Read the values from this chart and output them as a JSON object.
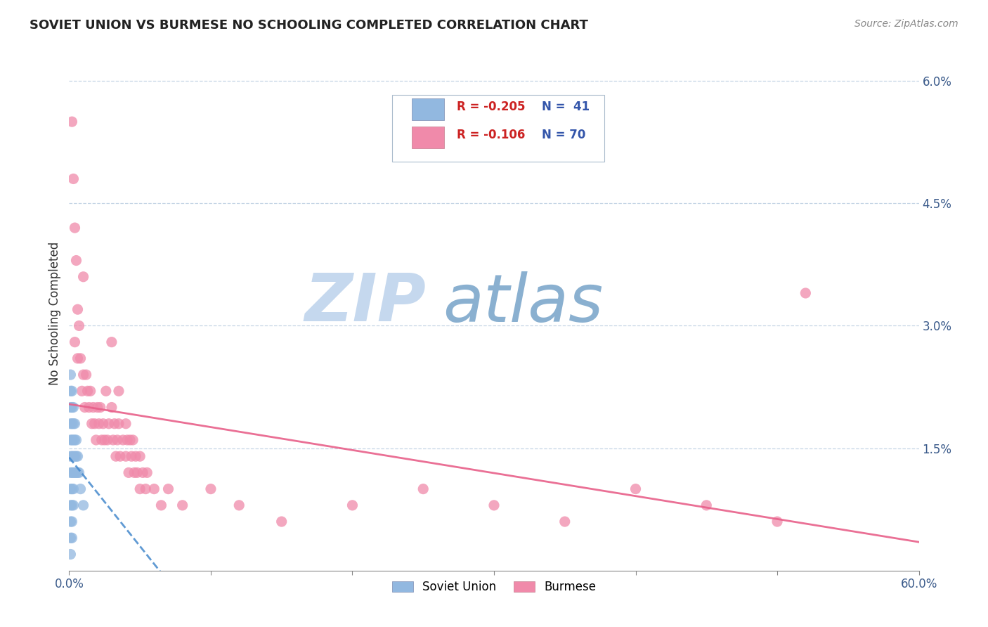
{
  "title": "SOVIET UNION VS BURMESE NO SCHOOLING COMPLETED CORRELATION CHART",
  "source": "Source: ZipAtlas.com",
  "ylabel": "No Schooling Completed",
  "soviet_color": "#92b8e0",
  "burmese_color": "#f08aaa",
  "soviet_trend_color": "#4488cc",
  "burmese_trend_color": "#e8608a",
  "background_color": "#ffffff",
  "watermark_zip": "ZIP",
  "watermark_atlas": "atlas",
  "watermark_color_zip": "#c5d8ee",
  "watermark_color_atlas": "#8ab0d0",
  "xmin": 0.0,
  "xmax": 0.6,
  "ymin": 0.0,
  "ymax": 0.063,
  "yticks": [
    0.0,
    0.015,
    0.03,
    0.045,
    0.06
  ],
  "yticklabels": [
    "",
    "1.5%",
    "3.0%",
    "4.5%",
    "6.0%"
  ],
  "legend_soviet_r": "R = -0.205",
  "legend_soviet_n": "N =  41",
  "legend_burmese_r": "R = -0.106",
  "legend_burmese_n": "N = 70",
  "soviet_points": [
    [
      0.001,
      0.024
    ],
    [
      0.001,
      0.022
    ],
    [
      0.001,
      0.02
    ],
    [
      0.001,
      0.018
    ],
    [
      0.001,
      0.016
    ],
    [
      0.001,
      0.014
    ],
    [
      0.001,
      0.012
    ],
    [
      0.001,
      0.01
    ],
    [
      0.001,
      0.008
    ],
    [
      0.001,
      0.006
    ],
    [
      0.001,
      0.004
    ],
    [
      0.001,
      0.002
    ],
    [
      0.002,
      0.022
    ],
    [
      0.002,
      0.02
    ],
    [
      0.002,
      0.018
    ],
    [
      0.002,
      0.016
    ],
    [
      0.002,
      0.014
    ],
    [
      0.002,
      0.012
    ],
    [
      0.002,
      0.01
    ],
    [
      0.002,
      0.008
    ],
    [
      0.002,
      0.006
    ],
    [
      0.002,
      0.004
    ],
    [
      0.003,
      0.02
    ],
    [
      0.003,
      0.018
    ],
    [
      0.003,
      0.016
    ],
    [
      0.003,
      0.014
    ],
    [
      0.003,
      0.012
    ],
    [
      0.003,
      0.01
    ],
    [
      0.003,
      0.008
    ],
    [
      0.004,
      0.018
    ],
    [
      0.004,
      0.016
    ],
    [
      0.004,
      0.014
    ],
    [
      0.004,
      0.012
    ],
    [
      0.005,
      0.016
    ],
    [
      0.005,
      0.014
    ],
    [
      0.005,
      0.012
    ],
    [
      0.006,
      0.014
    ],
    [
      0.006,
      0.012
    ],
    [
      0.007,
      0.012
    ],
    [
      0.008,
      0.01
    ],
    [
      0.01,
      0.008
    ]
  ],
  "burmese_points": [
    [
      0.002,
      0.055
    ],
    [
      0.003,
      0.048
    ],
    [
      0.004,
      0.042
    ],
    [
      0.005,
      0.038
    ],
    [
      0.006,
      0.032
    ],
    [
      0.004,
      0.028
    ],
    [
      0.006,
      0.026
    ],
    [
      0.007,
      0.03
    ],
    [
      0.008,
      0.026
    ],
    [
      0.009,
      0.022
    ],
    [
      0.01,
      0.024
    ],
    [
      0.011,
      0.02
    ],
    [
      0.012,
      0.024
    ],
    [
      0.013,
      0.022
    ],
    [
      0.014,
      0.02
    ],
    [
      0.015,
      0.022
    ],
    [
      0.016,
      0.018
    ],
    [
      0.017,
      0.02
    ],
    [
      0.018,
      0.018
    ],
    [
      0.019,
      0.016
    ],
    [
      0.02,
      0.02
    ],
    [
      0.021,
      0.018
    ],
    [
      0.022,
      0.02
    ],
    [
      0.023,
      0.016
    ],
    [
      0.024,
      0.018
    ],
    [
      0.025,
      0.016
    ],
    [
      0.026,
      0.022
    ],
    [
      0.027,
      0.016
    ],
    [
      0.028,
      0.018
    ],
    [
      0.03,
      0.02
    ],
    [
      0.031,
      0.016
    ],
    [
      0.032,
      0.018
    ],
    [
      0.033,
      0.014
    ],
    [
      0.034,
      0.016
    ],
    [
      0.035,
      0.022
    ],
    [
      0.035,
      0.018
    ],
    [
      0.036,
      0.014
    ],
    [
      0.038,
      0.016
    ],
    [
      0.04,
      0.018
    ],
    [
      0.04,
      0.014
    ],
    [
      0.041,
      0.016
    ],
    [
      0.042,
      0.012
    ],
    [
      0.043,
      0.016
    ],
    [
      0.044,
      0.014
    ],
    [
      0.045,
      0.016
    ],
    [
      0.046,
      0.012
    ],
    [
      0.047,
      0.014
    ],
    [
      0.048,
      0.012
    ],
    [
      0.05,
      0.01
    ],
    [
      0.05,
      0.014
    ],
    [
      0.052,
      0.012
    ],
    [
      0.054,
      0.01
    ],
    [
      0.055,
      0.012
    ],
    [
      0.06,
      0.01
    ],
    [
      0.065,
      0.008
    ],
    [
      0.07,
      0.01
    ],
    [
      0.08,
      0.008
    ],
    [
      0.1,
      0.01
    ],
    [
      0.12,
      0.008
    ],
    [
      0.15,
      0.006
    ],
    [
      0.2,
      0.008
    ],
    [
      0.25,
      0.01
    ],
    [
      0.3,
      0.008
    ],
    [
      0.35,
      0.006
    ],
    [
      0.4,
      0.01
    ],
    [
      0.45,
      0.008
    ],
    [
      0.5,
      0.006
    ],
    [
      0.52,
      0.034
    ],
    [
      0.01,
      0.036
    ],
    [
      0.03,
      0.028
    ]
  ]
}
